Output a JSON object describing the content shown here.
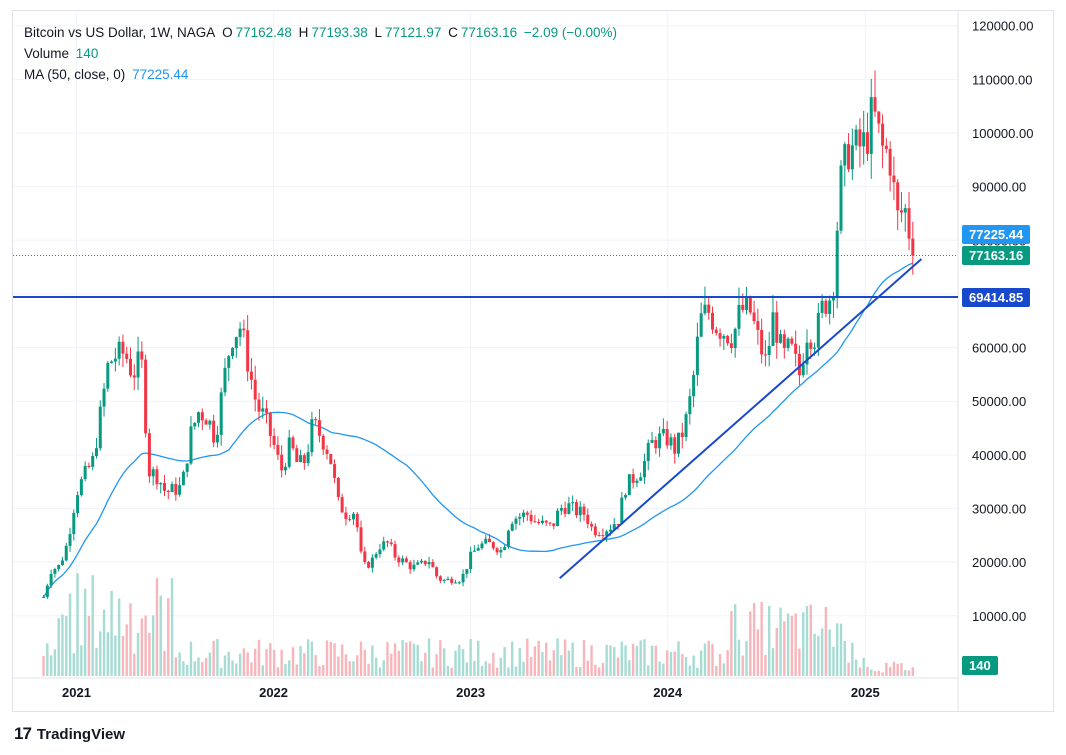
{
  "header": {
    "symbol_line": "Bitcoin vs US Dollar, 1W, NAGA",
    "open_label": "O",
    "open_value": "77162.48",
    "high_label": "H",
    "high_value": "77193.38",
    "low_label": "L",
    "low_value": "77121.97",
    "close_label": "C",
    "close_value": "77163.16",
    "change": "−2.09 (−0.00%)",
    "volume_label": "Volume",
    "volume_value": "140",
    "ma_label": "MA (50, close, 0)",
    "ma_value": "77225.44"
  },
  "labels": {
    "ma_price": "77225.44",
    "last_price": "77163.16",
    "hline_price": "69414.85",
    "volume_last": "140"
  },
  "brand": {
    "name": "TradingView"
  },
  "colors": {
    "up": "#089981",
    "down": "#f23645",
    "ma": "#2196f3",
    "line": "#1848cc",
    "vol_up": "#a6dcd3",
    "vol_down": "#f7b6bb"
  },
  "chart_data": {
    "type": "candlestick",
    "y_axis_ticks": [
      "10000.00",
      "20000.00",
      "30000.00",
      "40000.00",
      "50000.00",
      "60000.00",
      "70000.00",
      "80000.00",
      "90000.00",
      "100000.00",
      "110000.00",
      "120000.00"
    ],
    "x_axis_ticks": [
      "2021",
      "2022",
      "2023",
      "2024",
      "2025"
    ],
    "ylim": [
      0,
      122000
    ],
    "horizontal_line": 69414.85,
    "trendline": {
      "from": {
        "date": "2023-06-15",
        "price": 17000
      },
      "to": {
        "date": "2025-04-15",
        "price": 76500
      }
    },
    "weekly_closes": [
      {
        "date": "2020-11-01",
        "close": 13500
      },
      {
        "date": "2020-11-15",
        "close": 18500
      },
      {
        "date": "2020-12-01",
        "close": 19300
      },
      {
        "date": "2020-12-15",
        "close": 23500
      },
      {
        "date": "2021-01-01",
        "close": 33000
      },
      {
        "date": "2021-01-15",
        "close": 36000
      },
      {
        "date": "2021-02-01",
        "close": 39000
      },
      {
        "date": "2021-02-15",
        "close": 48000
      },
      {
        "date": "2021-03-01",
        "close": 57000
      },
      {
        "date": "2021-03-15",
        "close": 58500
      },
      {
        "date": "2021-04-01",
        "close": 59000
      },
      {
        "date": "2021-04-15",
        "close": 55000
      },
      {
        "date": "2021-05-01",
        "close": 58000
      },
      {
        "date": "2021-05-15",
        "close": 37000
      },
      {
        "date": "2021-06-01",
        "close": 36000
      },
      {
        "date": "2021-06-15",
        "close": 33000
      },
      {
        "date": "2021-07-01",
        "close": 33500
      },
      {
        "date": "2021-07-15",
        "close": 34000
      },
      {
        "date": "2021-08-01",
        "close": 44000
      },
      {
        "date": "2021-08-15",
        "close": 48000
      },
      {
        "date": "2021-09-01",
        "close": 47000
      },
      {
        "date": "2021-09-15",
        "close": 43000
      },
      {
        "date": "2021-10-01",
        "close": 54000
      },
      {
        "date": "2021-10-15",
        "close": 62000
      },
      {
        "date": "2021-11-01",
        "close": 64000
      },
      {
        "date": "2021-11-15",
        "close": 57000
      },
      {
        "date": "2021-12-01",
        "close": 49000
      },
      {
        "date": "2021-12-15",
        "close": 47000
      },
      {
        "date": "2022-01-01",
        "close": 42000
      },
      {
        "date": "2022-01-15",
        "close": 37000
      },
      {
        "date": "2022-02-01",
        "close": 42000
      },
      {
        "date": "2022-02-15",
        "close": 38000
      },
      {
        "date": "2022-03-01",
        "close": 39000
      },
      {
        "date": "2022-03-15",
        "close": 46000
      },
      {
        "date": "2022-04-01",
        "close": 43000
      },
      {
        "date": "2022-04-15",
        "close": 40000
      },
      {
        "date": "2022-05-01",
        "close": 31000
      },
      {
        "date": "2022-05-15",
        "close": 29000
      },
      {
        "date": "2022-06-01",
        "close": 29500
      },
      {
        "date": "2022-06-15",
        "close": 19000
      },
      {
        "date": "2022-07-01",
        "close": 20000
      },
      {
        "date": "2022-07-15",
        "close": 23000
      },
      {
        "date": "2022-08-01",
        "close": 23500
      },
      {
        "date": "2022-08-15",
        "close": 21000
      },
      {
        "date": "2022-09-01",
        "close": 20000
      },
      {
        "date": "2022-09-15",
        "close": 19000
      },
      {
        "date": "2022-10-01",
        "close": 19500
      },
      {
        "date": "2022-10-15",
        "close": 20500
      },
      {
        "date": "2022-11-01",
        "close": 17000
      },
      {
        "date": "2022-11-15",
        "close": 16500
      },
      {
        "date": "2022-12-01",
        "close": 17000
      },
      {
        "date": "2022-12-15",
        "close": 16800
      },
      {
        "date": "2023-01-01",
        "close": 21000
      },
      {
        "date": "2023-01-15",
        "close": 23000
      },
      {
        "date": "2023-02-01",
        "close": 23500
      },
      {
        "date": "2023-02-15",
        "close": 23000
      },
      {
        "date": "2023-03-01",
        "close": 22000
      },
      {
        "date": "2023-03-15",
        "close": 28000
      },
      {
        "date": "2023-04-01",
        "close": 28500
      },
      {
        "date": "2023-04-15",
        "close": 29000
      },
      {
        "date": "2023-05-01",
        "close": 27500
      },
      {
        "date": "2023-05-15",
        "close": 27000
      },
      {
        "date": "2023-06-01",
        "close": 26500
      },
      {
        "date": "2023-06-15",
        "close": 30000
      },
      {
        "date": "2023-07-01",
        "close": 30500
      },
      {
        "date": "2023-07-15",
        "close": 29500
      },
      {
        "date": "2023-08-01",
        "close": 29000
      },
      {
        "date": "2023-08-15",
        "close": 26000
      },
      {
        "date": "2023-09-01",
        "close": 26000
      },
      {
        "date": "2023-09-15",
        "close": 26500
      },
      {
        "date": "2023-10-01",
        "close": 28000
      },
      {
        "date": "2023-10-15",
        "close": 34000
      },
      {
        "date": "2023-11-01",
        "close": 36000
      },
      {
        "date": "2023-11-15",
        "close": 37500
      },
      {
        "date": "2023-12-01",
        "close": 42000
      },
      {
        "date": "2023-12-15",
        "close": 43000
      },
      {
        "date": "2024-01-01",
        "close": 43000
      },
      {
        "date": "2024-01-15",
        "close": 41000
      },
      {
        "date": "2024-02-01",
        "close": 45000
      },
      {
        "date": "2024-02-15",
        "close": 52000
      },
      {
        "date": "2024-03-01",
        "close": 65000
      },
      {
        "date": "2024-03-15",
        "close": 67000
      },
      {
        "date": "2024-04-01",
        "close": 64000
      },
      {
        "date": "2024-04-15",
        "close": 63000
      },
      {
        "date": "2024-05-01",
        "close": 62000
      },
      {
        "date": "2024-05-15",
        "close": 67000
      },
      {
        "date": "2024-06-01",
        "close": 67000
      },
      {
        "date": "2024-06-15",
        "close": 62000
      },
      {
        "date": "2024-07-01",
        "close": 57000
      },
      {
        "date": "2024-07-15",
        "close": 66000
      },
      {
        "date": "2024-08-01",
        "close": 58000
      },
      {
        "date": "2024-08-15",
        "close": 60000
      },
      {
        "date": "2024-09-01",
        "close": 55000
      },
      {
        "date": "2024-09-15",
        "close": 63000
      },
      {
        "date": "2024-10-01",
        "close": 62000
      },
      {
        "date": "2024-10-15",
        "close": 68000
      },
      {
        "date": "2024-11-01",
        "close": 70000
      },
      {
        "date": "2024-11-15",
        "close": 90000
      },
      {
        "date": "2024-12-01",
        "close": 97000
      },
      {
        "date": "2024-12-15",
        "close": 97000
      },
      {
        "date": "2025-01-01",
        "close": 98000
      },
      {
        "date": "2025-01-15",
        "close": 104000
      },
      {
        "date": "2025-02-01",
        "close": 97000
      },
      {
        "date": "2025-02-15",
        "close": 96000
      },
      {
        "date": "2025-03-01",
        "close": 84000
      },
      {
        "date": "2025-03-15",
        "close": 86000
      },
      {
        "date": "2025-04-01",
        "close": 77163
      }
    ]
  }
}
